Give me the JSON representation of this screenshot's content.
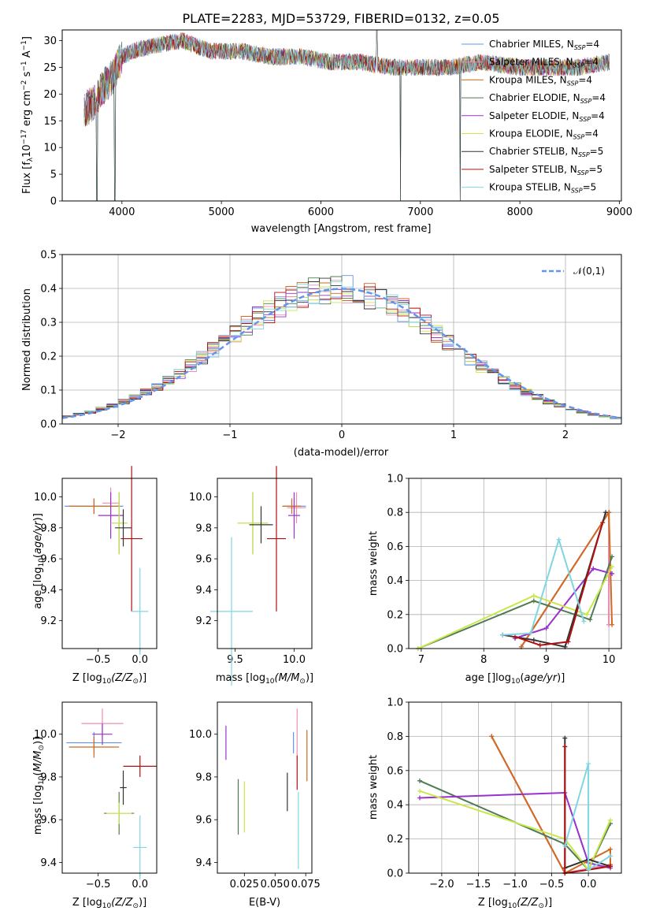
{
  "figure": {
    "title": "PLATE=2283, MJD=53729, FIBERID=0132, z=0.05"
  },
  "series_styles": [
    {
      "name": "Chabrier MILES, N_SSP=4",
      "label_main": "Chabrier MILES, N",
      "label_sub": "SSP",
      "label_tail": "=4",
      "color": "#6495ed"
    },
    {
      "name": "Salpeter MILES, N_SSP=4",
      "label_main": "Salpeter MILES, N",
      "label_sub": "SSP",
      "label_tail": "=4",
      "color": "#f08eb0"
    },
    {
      "name": "Kroupa MILES, N_SSP=4",
      "label_main": "Kroupa MILES, N",
      "label_sub": "SSP",
      "label_tail": "=4",
      "color": "#d2691e"
    },
    {
      "name": "Chabrier ELODIE, N_SSP=4",
      "label_main": "Chabrier ELODIE, N",
      "label_sub": "SSP",
      "label_tail": "=4",
      "color": "#4f7a55"
    },
    {
      "name": "Salpeter ELODIE, N_SSP=4",
      "label_main": "Salpeter ELODIE, N",
      "label_sub": "SSP",
      "label_tail": "=4",
      "color": "#9932cc"
    },
    {
      "name": "Kroupa ELODIE, N_SSP=4",
      "label_main": "Kroupa ELODIE, N",
      "label_sub": "SSP",
      "label_tail": "=4",
      "color": "#c8e84a"
    },
    {
      "name": "Chabrier STELIB, N_SSP=5",
      "label_main": "Chabrier STELIB, N",
      "label_sub": "SSP",
      "label_tail": "=5",
      "color": "#333333"
    },
    {
      "name": "Salpeter STELIB, N_SSP=5",
      "label_main": "Salpeter STELIB, N",
      "label_sub": "SSP",
      "label_tail": "=5",
      "color": "#b01010"
    },
    {
      "name": "Kroupa STELIB, N_SSP=5",
      "label_main": "Kroupa STELIB, N",
      "label_sub": "SSP",
      "label_tail": "=5",
      "color": "#7fd6e0"
    }
  ],
  "chart_data": [
    {
      "id": "spectrum",
      "type": "line",
      "xlabel": "wavelength [Angstrom, rest frame]",
      "ylabel_parts": [
        "Flux [f",
        "λ",
        "10",
        "−17",
        " erg cm",
        "−2",
        " s",
        "−1",
        " A",
        "−1",
        "]"
      ],
      "xlim": [
        3400,
        9020
      ],
      "ylim": [
        0,
        32
      ],
      "xticks": [
        4000,
        5000,
        6000,
        7000,
        8000,
        9000
      ],
      "yticks": [
        0,
        5,
        10,
        15,
        20,
        25,
        30
      ],
      "legend_position": "upper-right",
      "grid": false,
      "continuum_points": [
        [
          3620,
          17
        ],
        [
          3700,
          18
        ],
        [
          3800,
          21
        ],
        [
          3900,
          23
        ],
        [
          4000,
          27
        ],
        [
          4100,
          28
        ],
        [
          4300,
          29
        ],
        [
          4600,
          30
        ],
        [
          4900,
          28
        ],
        [
          5200,
          28
        ],
        [
          5500,
          27
        ],
        [
          5800,
          27
        ],
        [
          6100,
          26
        ],
        [
          6400,
          26
        ],
        [
          6700,
          25
        ],
        [
          7000,
          25
        ],
        [
          7300,
          25
        ],
        [
          7600,
          26
        ],
        [
          8000,
          25
        ],
        [
          8300,
          25
        ],
        [
          8600,
          25
        ],
        [
          8900,
          26
        ]
      ],
      "features": [
        [
          3750,
          0
        ],
        [
          3930,
          0
        ],
        [
          4340,
          30
        ],
        [
          6563,
          32
        ],
        [
          6800,
          0
        ],
        [
          7400,
          0
        ]
      ]
    },
    {
      "id": "residuals",
      "type": "histogram",
      "xlabel": "(data-model)/error",
      "ylabel": "Normed distribution",
      "xlim": [
        -2.5,
        2.5
      ],
      "ylim": [
        0,
        0.5
      ],
      "xticks": [
        -2,
        -1,
        0,
        1,
        2
      ],
      "yticks": [
        0,
        0.1,
        0.2,
        0.3,
        0.4,
        0.5
      ],
      "xtick_labels": [
        "−2",
        "−1",
        "0",
        "1",
        "2"
      ],
      "ytick_labels": [
        "0.0",
        "0.1",
        "0.2",
        "0.3",
        "0.4",
        "0.5"
      ],
      "bin_width": 0.1,
      "grid": true,
      "reference_curve": {
        "label": "𝒩(0,1)",
        "color": "#6495ed",
        "style": "dashed",
        "mean": 0,
        "sigma": 1
      }
    },
    {
      "id": "age-vs-z",
      "type": "errorbar",
      "xlabel_main": "Z [log",
      "xlabel_sub": "10",
      "xlabel_tail": "(Z/Z",
      "xlabel_sun": "⊙",
      "xlabel_end": ")]",
      "ylabel": "age  [log10(age/yr)]",
      "xlim": [
        -0.93,
        0.2
      ],
      "ylim": [
        9.02,
        10.12
      ],
      "xticks": [
        -0.5,
        0.0
      ],
      "xtick_labels": [
        "−0.5",
        "0.0"
      ],
      "yticks": [
        9.2,
        9.4,
        9.6,
        9.8,
        10.0
      ],
      "ytick_labels": [
        "9.2",
        "9.4",
        "9.6",
        "9.8",
        "10.0"
      ],
      "points": [
        {
          "x": -0.55,
          "xerr": 0.35,
          "y": 9.94,
          "yerr": 0.05,
          "color": "#6495ed"
        },
        {
          "x": -0.35,
          "xerr": 0.1,
          "y": 9.96,
          "yerr": 0.1,
          "color": "#f08eb0"
        },
        {
          "x": -0.55,
          "xerr": 0.3,
          "y": 9.94,
          "yerr": 0.05,
          "color": "#d2691e"
        },
        {
          "x": -0.25,
          "xerr": 0.1,
          "y": 9.83,
          "yerr": 0.2,
          "color": "#4f7a55"
        },
        {
          "x": -0.35,
          "xerr": 0.15,
          "y": 9.88,
          "yerr": 0.15,
          "color": "#9932cc"
        },
        {
          "x": -0.25,
          "xerr": 0.1,
          "y": 9.83,
          "yerr": 0.2,
          "color": "#c8e84a"
        },
        {
          "x": -0.2,
          "xerr": 0.1,
          "y": 9.8,
          "yerr": 0.12,
          "color": "#333333"
        },
        {
          "x": -0.1,
          "xerr": 0.13,
          "y": 9.73,
          "yerr": 0.47,
          "color": "#b01010"
        },
        {
          "x": 0.0,
          "xerr": 0.1,
          "y": 9.26,
          "yerr": 0.28,
          "color": "#7fd6e0"
        }
      ]
    },
    {
      "id": "age-vs-mass",
      "type": "errorbar",
      "xlabel_main": "mass [log",
      "xlabel_sub": "10",
      "xlabel_tail": "(M/M",
      "xlabel_sun": "⊙",
      "xlabel_end": ")]",
      "xlim": [
        9.35,
        10.15
      ],
      "ylim": [
        9.02,
        10.12
      ],
      "xticks": [
        9.5,
        10.0
      ],
      "xtick_labels": [
        "9.5",
        "10.0"
      ],
      "yticks": [
        9.2,
        9.4,
        9.6,
        9.8,
        10.0
      ],
      "ytick_labels": [
        "9.2",
        "9.4",
        "9.6",
        "9.8",
        "10.0"
      ],
      "points": [
        {
          "x": 10.0,
          "xerr": 0.1,
          "y": 9.94,
          "yerr": 0.05,
          "color": "#6495ed"
        },
        {
          "x": 10.02,
          "xerr": 0.08,
          "y": 9.93,
          "yerr": 0.1,
          "color": "#f08eb0"
        },
        {
          "x": 9.98,
          "xerr": 0.08,
          "y": 9.94,
          "yerr": 0.05,
          "color": "#d2691e"
        },
        {
          "x": 9.65,
          "xerr": 0.13,
          "y": 9.83,
          "yerr": 0.2,
          "color": "#4f7a55"
        },
        {
          "x": 10.0,
          "xerr": 0.05,
          "y": 9.88,
          "yerr": 0.15,
          "color": "#9932cc"
        },
        {
          "x": 9.65,
          "xerr": 0.13,
          "y": 9.83,
          "yerr": 0.2,
          "color": "#c8e84a"
        },
        {
          "x": 9.72,
          "xerr": 0.1,
          "y": 9.82,
          "yerr": 0.12,
          "color": "#333333"
        },
        {
          "x": 9.85,
          "xerr": 0.08,
          "y": 9.73,
          "yerr": 0.47,
          "color": "#b01010"
        },
        {
          "x": 9.47,
          "xerr": 0.18,
          "y": 9.26,
          "yerr": 0.48,
          "color": "#7fd6e0"
        }
      ]
    },
    {
      "id": "weight-vs-age",
      "type": "line",
      "xlabel": "age  [log10(age/yr)]",
      "ylabel": "mass weight",
      "xlim": [
        6.8,
        10.2
      ],
      "ylim": [
        0,
        1
      ],
      "xticks": [
        7,
        8,
        9,
        10
      ],
      "xtick_labels": [
        "7",
        "8",
        "9",
        "10"
      ],
      "yticks": [
        0,
        0.2,
        0.4,
        0.6,
        0.8,
        1.0
      ],
      "ytick_labels": [
        "0.0",
        "0.2",
        "0.4",
        "0.6",
        "0.8",
        "1.0"
      ],
      "grid": true,
      "series": [
        {
          "color": "#6495ed",
          "x": [
            8.6,
            10.0,
            10.0
          ],
          "y": [
            0.01,
            0.8,
            0.14
          ]
        },
        {
          "color": "#f08eb0",
          "x": [
            8.6,
            10.0,
            10.0
          ],
          "y": [
            0.01,
            0.8,
            0.14
          ]
        },
        {
          "color": "#d2691e",
          "x": [
            8.6,
            10.0,
            10.05
          ],
          "y": [
            0.01,
            0.8,
            0.14
          ]
        },
        {
          "color": "#4f7a55",
          "x": [
            6.95,
            8.8,
            9.7,
            10.05
          ],
          "y": [
            0.0,
            0.28,
            0.17,
            0.54
          ]
        },
        {
          "color": "#9932cc",
          "x": [
            8.5,
            9.0,
            9.75,
            10.05
          ],
          "y": [
            0.06,
            0.12,
            0.47,
            0.44
          ]
        },
        {
          "color": "#c8e84a",
          "x": [
            6.95,
            8.8,
            9.65,
            10.05
          ],
          "y": [
            0.0,
            0.31,
            0.2,
            0.48
          ]
        },
        {
          "color": "#333333",
          "x": [
            8.3,
            8.8,
            9.3,
            9.95
          ],
          "y": [
            0.08,
            0.05,
            0.01,
            0.8
          ]
        },
        {
          "color": "#b01010",
          "x": [
            8.5,
            8.9,
            9.35,
            9.9
          ],
          "y": [
            0.07,
            0.02,
            0.04,
            0.74
          ]
        },
        {
          "color": "#7fd6e0",
          "x": [
            8.3,
            8.75,
            9.2,
            9.6
          ],
          "y": [
            0.08,
            0.09,
            0.64,
            0.16
          ]
        }
      ]
    },
    {
      "id": "mass-vs-z",
      "type": "errorbar",
      "xlabel_main": "Z [log",
      "xlabel_sub": "10",
      "xlabel_tail": "(Z/Z",
      "xlabel_sun": "⊙",
      "xlabel_end": ")]",
      "ylabel": "mass [log10(M/M⊙)]",
      "xlim": [
        -0.93,
        0.2
      ],
      "ylim": [
        9.35,
        10.15
      ],
      "xticks": [
        -0.5,
        0.0
      ],
      "xtick_labels": [
        "−0.5",
        "0.0"
      ],
      "yticks": [
        9.4,
        9.6,
        9.8,
        10.0
      ],
      "ytick_labels": [
        "9.4",
        "9.6",
        "9.8",
        "10.0"
      ],
      "points": [
        {
          "x": -0.55,
          "xerr": 0.33,
          "y": 9.96,
          "yerr": 0.05,
          "color": "#6495ed"
        },
        {
          "x": -0.45,
          "xerr": 0.25,
          "y": 10.05,
          "yerr": 0.07,
          "color": "#f08eb0"
        },
        {
          "x": -0.55,
          "xerr": 0.3,
          "y": 9.94,
          "yerr": 0.05,
          "color": "#d2691e"
        },
        {
          "x": -0.25,
          "xerr": 0.18,
          "y": 9.63,
          "yerr": 0.1,
          "color": "#4f7a55"
        },
        {
          "x": -0.45,
          "xerr": 0.12,
          "y": 10.0,
          "yerr": 0.05,
          "color": "#9932cc"
        },
        {
          "x": -0.25,
          "xerr": 0.15,
          "y": 9.63,
          "yerr": 0.05,
          "color": "#c8e84a"
        },
        {
          "x": -0.2,
          "xerr": 0.04,
          "y": 9.75,
          "yerr": 0.08,
          "color": "#333333"
        },
        {
          "x": 0.0,
          "xerr": 0.2,
          "y": 9.85,
          "yerr": 0.05,
          "color": "#b01010"
        },
        {
          "x": 0.0,
          "xerr": 0.08,
          "y": 9.47,
          "yerr": 0.15,
          "color": "#7fd6e0"
        }
      ]
    },
    {
      "id": "mass-vs-ebv",
      "type": "errorbar",
      "xlabel": "E(B-V)",
      "xlim": [
        0.003,
        0.08
      ],
      "ylim": [
        9.35,
        10.15
      ],
      "xticks": [
        0.025,
        0.05,
        0.075
      ],
      "xtick_labels": [
        "0.025",
        "0.050",
        "0.075"
      ],
      "yticks": [
        9.4,
        9.6,
        9.8,
        10.0
      ],
      "ytick_labels": [
        "9.4",
        "9.6",
        "9.8",
        "10.0"
      ],
      "points": [
        {
          "x": 0.065,
          "xerr": 0,
          "y": 9.96,
          "yerr": 0.05,
          "color": "#6495ed"
        },
        {
          "x": 0.068,
          "xerr": 0,
          "y": 10.0,
          "yerr": 0.12,
          "color": "#f08eb0"
        },
        {
          "x": 0.076,
          "xerr": 0,
          "y": 9.9,
          "yerr": 0.12,
          "color": "#d2691e"
        },
        {
          "x": 0.02,
          "xerr": 0,
          "y": 9.66,
          "yerr": 0.13,
          "color": "#4f7a55"
        },
        {
          "x": 0.01,
          "xerr": 0,
          "y": 9.96,
          "yerr": 0.08,
          "color": "#9932cc"
        },
        {
          "x": 0.025,
          "xerr": 0,
          "y": 9.66,
          "yerr": 0.12,
          "color": "#c8e84a"
        },
        {
          "x": 0.06,
          "xerr": 0,
          "y": 9.73,
          "yerr": 0.09,
          "color": "#333333"
        },
        {
          "x": 0.068,
          "xerr": 0,
          "y": 9.82,
          "yerr": 0.08,
          "color": "#b01010"
        },
        {
          "x": 0.069,
          "xerr": 0,
          "y": 9.55,
          "yerr": 0.18,
          "color": "#7fd6e0"
        }
      ]
    },
    {
      "id": "weight-vs-z",
      "type": "line",
      "xlabel_main": "Z [log",
      "xlabel_sub": "10",
      "xlabel_tail": "(Z/Z",
      "xlabel_sun": "⊙",
      "xlabel_end": ")]",
      "ylabel": "mass weight",
      "xlim": [
        -2.45,
        0.45
      ],
      "ylim": [
        0,
        1
      ],
      "xticks": [
        -2.0,
        -1.5,
        -1.0,
        -0.5,
        0.0
      ],
      "xtick_labels": [
        "−2.0",
        "−1.5",
        "−1.0",
        "−0.5",
        "0.0"
      ],
      "yticks": [
        0,
        0.2,
        0.4,
        0.6,
        0.8,
        1.0
      ],
      "ytick_labels": [
        "0.0",
        "0.2",
        "0.4",
        "0.6",
        "0.8",
        "1.0"
      ],
      "grid": true,
      "series": [
        {
          "color": "#6495ed",
          "x": [
            -1.32,
            -0.32,
            0.3
          ],
          "y": [
            0.8,
            0.0,
            0.05
          ]
        },
        {
          "color": "#f08eb0",
          "x": [
            -1.32,
            -0.32,
            0.3
          ],
          "y": [
            0.8,
            0.0,
            0.05
          ]
        },
        {
          "color": "#d2691e",
          "x": [
            -1.32,
            -0.32,
            0.3,
            0.3
          ],
          "y": [
            0.8,
            0.0,
            0.14,
            0.05
          ]
        },
        {
          "color": "#4f7a55",
          "x": [
            -2.3,
            -0.32,
            0.0,
            0.3
          ],
          "y": [
            0.54,
            0.17,
            0.02,
            0.29
          ]
        },
        {
          "color": "#9932cc",
          "x": [
            -2.3,
            -0.32,
            0.0,
            0.3
          ],
          "y": [
            0.44,
            0.47,
            0.06,
            0.03
          ]
        },
        {
          "color": "#c8e84a",
          "x": [
            -2.3,
            -0.32,
            0.0,
            0.3
          ],
          "y": [
            0.48,
            0.2,
            0.02,
            0.31
          ]
        },
        {
          "color": "#333333",
          "x": [
            -0.32,
            -0.32,
            0.0,
            0.3
          ],
          "y": [
            0.79,
            0.03,
            0.08,
            0.04
          ]
        },
        {
          "color": "#b01010",
          "x": [
            -0.32,
            -0.32,
            0.0,
            0.3
          ],
          "y": [
            0.74,
            0.0,
            0.02,
            0.04
          ]
        },
        {
          "color": "#7fd6e0",
          "x": [
            -0.32,
            0.0,
            0.0,
            0.3
          ],
          "y": [
            0.16,
            0.64,
            0.02,
            0.1
          ]
        }
      ]
    }
  ]
}
